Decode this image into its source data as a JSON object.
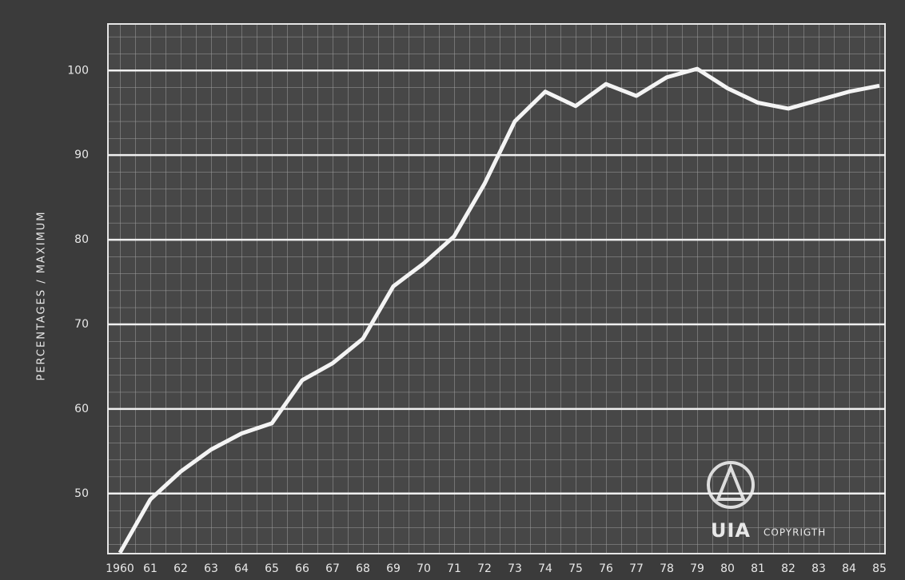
{
  "chart_data": {
    "type": "line",
    "ylabel": "PERCENTAGES / MAXIMUM",
    "categories": [
      "1960",
      "61",
      "62",
      "63",
      "64",
      "65",
      "66",
      "67",
      "68",
      "69",
      "70",
      "71",
      "72",
      "73",
      "74",
      "75",
      "76",
      "77",
      "78",
      "79",
      "80",
      "81",
      "82",
      "83",
      "84",
      "85"
    ],
    "values": [
      43,
      49.3,
      52.6,
      55.2,
      57.1,
      58.3,
      63.4,
      65.4,
      68.3,
      74.5,
      77.2,
      80.4,
      86.6,
      94.0,
      97.5,
      95.8,
      98.4,
      97.0,
      99.2,
      100.2,
      97.9,
      96.2,
      95.5,
      96.5,
      97.5,
      98.2
    ],
    "color": "#f4f4f4",
    "ylim": [
      42.9,
      105.5
    ],
    "yticks": [
      50,
      60,
      70,
      80,
      90,
      100
    ],
    "grid": true,
    "annotations": [
      "UIA",
      "COPYRIGTH"
    ]
  }
}
